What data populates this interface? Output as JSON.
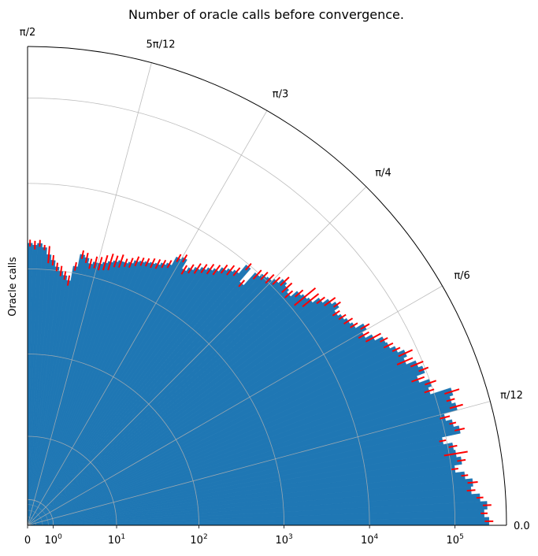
{
  "chart_data": {
    "type": "bar",
    "subtype": "polar",
    "title": "Number of oracle calls before convergence.",
    "ylabel": "Oracle calls",
    "radial_scale": "symlog",
    "radial_ticks": [
      {
        "value": 0,
        "label": "0"
      },
      {
        "value": 1,
        "label": "10",
        "exp": "0"
      },
      {
        "value": 10,
        "label": "10",
        "exp": "1"
      },
      {
        "value": 100,
        "label": "10",
        "exp": "2"
      },
      {
        "value": 1000,
        "label": "10",
        "exp": "3"
      },
      {
        "value": 10000,
        "label": "10",
        "exp": "4"
      },
      {
        "value": 100000,
        "label": "10",
        "exp": "5"
      }
    ],
    "angular_ticks": [
      {
        "angle": 0,
        "label": "0.0"
      },
      {
        "angle": 15,
        "label": "π/12"
      },
      {
        "angle": 30,
        "label": "π/6"
      },
      {
        "angle": 45,
        "label": "π/4"
      },
      {
        "angle": 60,
        "label": "π/3"
      },
      {
        "angle": 75,
        "label": "5π/12"
      },
      {
        "angle": 90,
        "label": "π/2"
      }
    ],
    "theta_range_deg": [
      0,
      90
    ],
    "r_max": 400000,
    "grid": true,
    "bar_color": "#1f77b4",
    "error_color": "#ff0000",
    "angles_deg": [
      0.5,
      1.5,
      2.5,
      3.5,
      4.5,
      5.5,
      6.5,
      7.5,
      8.5,
      9.5,
      10.5,
      11.5,
      12.5,
      13.5,
      14.5,
      15.5,
      16.5,
      17.5,
      18.5,
      19.5,
      20.5,
      21.5,
      22.5,
      23.5,
      24.5,
      25.5,
      26.5,
      27.5,
      28.5,
      29.5,
      30.5,
      31.5,
      32.5,
      33.5,
      34.5,
      35.5,
      36.5,
      37.5,
      38.5,
      39.5,
      40.5,
      41.5,
      42.5,
      43.5,
      44.5,
      45.5,
      46.5,
      47.5,
      48.5,
      49.5,
      50.5,
      51.5,
      52.5,
      53.5,
      54.5,
      55.5,
      56.5,
      57.5,
      58.5,
      59.5,
      60.5,
      61.5,
      62.5,
      63.5,
      64.5,
      65.5,
      66.5,
      67.5,
      68.5,
      69.5,
      70.5,
      71.5,
      72.5,
      73.5,
      74.5,
      75.5,
      76.5,
      77.5,
      78.5,
      79.5,
      80.5,
      81.5,
      82.5,
      83.5,
      84.5,
      85.5,
      86.5,
      87.5,
      88.5,
      89.5
    ],
    "values": [
      250000,
      220000,
      240000,
      200000,
      160000,
      170000,
      140000,
      110000,
      135000,
      120000,
      115000,
      90000,
      150000,
      130000,
      110000,
      160000,
      145000,
      160000,
      90000,
      100000,
      75000,
      95000,
      85000,
      65000,
      72000,
      60000,
      52000,
      50000,
      40000,
      33000,
      38000,
      30000,
      28000,
      26000,
      24000,
      28000,
      25000,
      21000,
      17000,
      16000,
      15000,
      12000,
      13000,
      14000,
      12000,
      11000,
      10500,
      9500,
      6000,
      9500,
      7000,
      6500,
      6000,
      5200,
      4800,
      4400,
      4000,
      3600,
      3200,
      4200,
      3900,
      3000,
      2800,
      2600,
      2500,
      2400,
      2300,
      2200,
      2000,
      1900,
      1900,
      1800,
      1700,
      1600,
      1500,
      1500,
      1400,
      1600,
      1700,
      1200,
      800,
      900,
      1000,
      1100,
      1300,
      1500,
      1800,
      2000,
      1900,
      2000
    ],
    "errors": [
      0.05,
      0.04,
      0.05,
      0.04,
      0.05,
      0.06,
      0.04,
      0.04,
      0.05,
      0.14,
      0.05,
      0.04,
      0.06,
      0.04,
      0.06,
      0.08,
      0.05,
      0.09,
      0.06,
      0.07,
      0.08,
      0.06,
      0.08,
      0.1,
      0.09,
      0.05,
      0.06,
      0.05,
      0.1,
      0.07,
      0.06,
      0.05,
      0.06,
      0.05,
      0.05,
      0.05,
      0.08,
      0.06,
      0.12,
      0.16,
      0.06,
      0.06,
      0.08,
      0.07,
      0.06,
      0.07,
      0.06,
      0.07,
      0.05,
      0.05,
      0.06,
      0.07,
      0.06,
      0.07,
      0.07,
      0.06,
      0.07,
      0.06,
      0.06,
      0.05,
      0.05,
      0.05,
      0.05,
      0.06,
      0.06,
      0.05,
      0.05,
      0.06,
      0.06,
      0.05,
      0.08,
      0.07,
      0.1,
      0.09,
      0.08,
      0.07,
      0.06,
      0.06,
      0.05,
      0.05,
      0.06,
      0.05,
      0.06,
      0.05,
      0.06,
      0.1,
      0.03,
      0.04,
      0.05,
      0.04
    ]
  }
}
